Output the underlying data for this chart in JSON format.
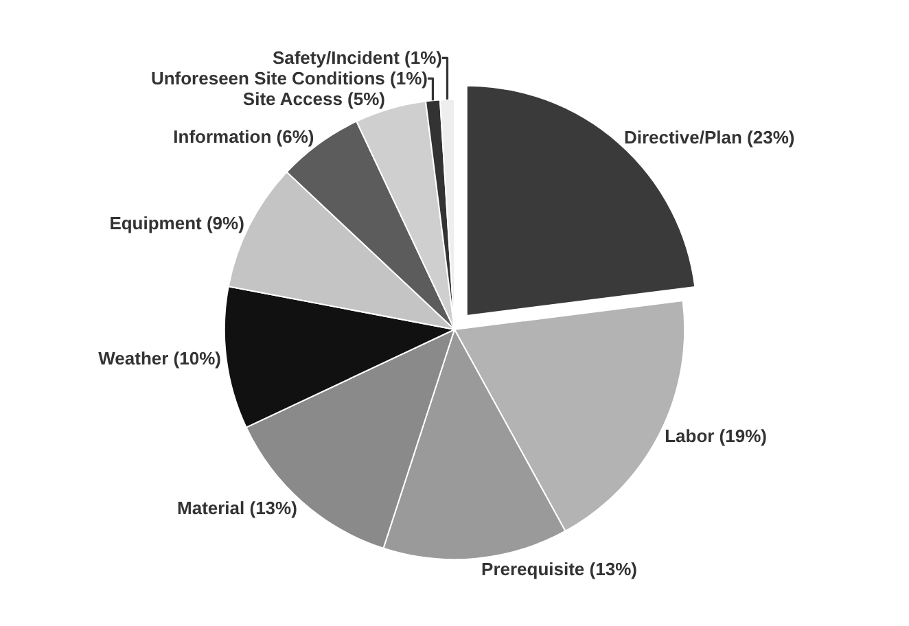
{
  "chart_data": {
    "type": "pie",
    "categories": [
      "Directive/Plan",
      "Labor",
      "Prerequisite",
      "Material",
      "Weather",
      "Equipment",
      "Information",
      "Site Access",
      "Unforeseen Site Conditions",
      "Safety/Incident"
    ],
    "values": [
      23,
      19,
      13,
      13,
      10,
      9,
      6,
      5,
      1,
      1
    ],
    "colors": [
      "#3a3a3a",
      "#b3b3b3",
      "#9a9a9a",
      "#8a8a8a",
      "#111111",
      "#c4c4c4",
      "#5c5c5c",
      "#cfcfcf",
      "#333333",
      "#eeeeee"
    ],
    "value_labels": [
      "(23%)",
      "(19%)",
      "(13%)",
      "(13%)",
      "(10%)",
      "(9%)",
      "(6%)",
      "(5%)",
      "(1%)",
      "(1%)"
    ],
    "legend": false
  }
}
